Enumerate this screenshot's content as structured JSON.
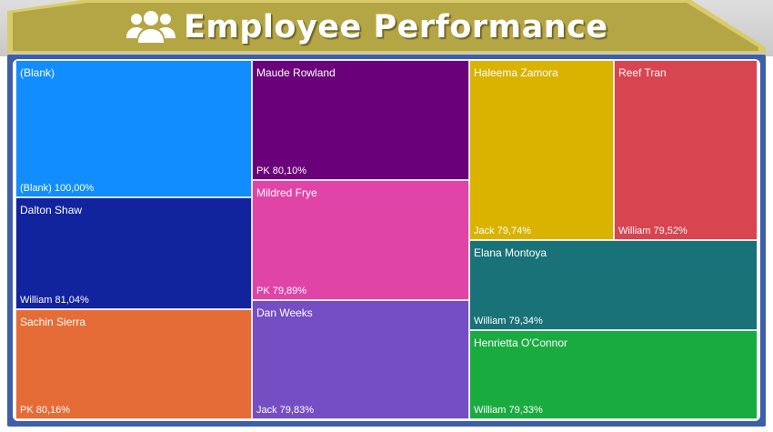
{
  "header": {
    "title": "Employee Performance",
    "icon": "users-icon",
    "banner_color": "#b5a645",
    "banner_light": "#d9cb6a"
  },
  "chart_data": {
    "type": "treemap",
    "tiles": [
      {
        "name": "(Blank)",
        "value_label": "(Blank) 100,00%",
        "group": "(Blank)",
        "value": 100.0,
        "color": "#118dff"
      },
      {
        "name": "Dalton Shaw",
        "value_label": "William 81,04%",
        "group": "William",
        "value": 81.04,
        "color": "#12239e"
      },
      {
        "name": "Sachin Sierra",
        "value_label": "PK 80,16%",
        "group": "PK",
        "value": 80.16,
        "color": "#e66c37"
      },
      {
        "name": "Maude Rowland",
        "value_label": "PK 80,10%",
        "group": "PK",
        "value": 80.1,
        "color": "#6b007b"
      },
      {
        "name": "Mildred Frye",
        "value_label": "PK 79,89%",
        "group": "PK",
        "value": 79.89,
        "color": "#e044a7"
      },
      {
        "name": "Dan Weeks",
        "value_label": "Jack 79,83%",
        "group": "Jack",
        "value": 79.83,
        "color": "#744ec2"
      },
      {
        "name": "Haleema Zamora",
        "value_label": "Jack 79,74%",
        "group": "Jack",
        "value": 79.74,
        "color": "#d9b300"
      },
      {
        "name": "Reef Tran",
        "value_label": "William 79,52%",
        "group": "William",
        "value": 79.52,
        "color": "#d64550"
      },
      {
        "name": "Elana Montoya",
        "value_label": "William 79,34%",
        "group": "William",
        "value": 79.34,
        "color": "#197278"
      },
      {
        "name": "Henrietta O'Connor",
        "value_label": "William 79,33%",
        "group": "William",
        "value": 79.33,
        "color": "#1aab40"
      }
    ]
  }
}
